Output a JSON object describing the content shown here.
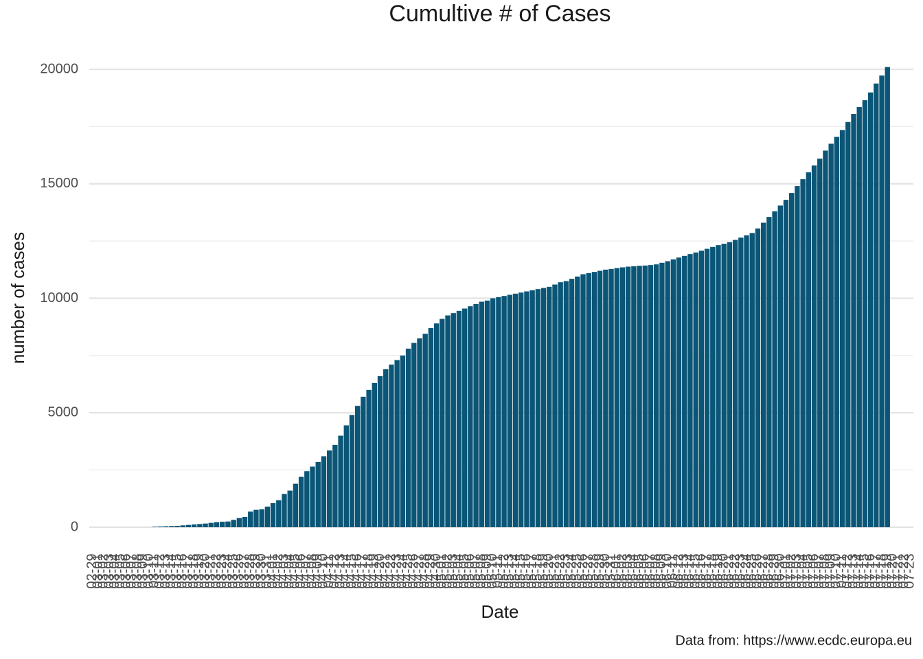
{
  "chart_data": {
    "type": "bar",
    "title": "Cumultive # of Cases",
    "x_label": "Date",
    "y_label": "number of cases",
    "caption": "Data from: https://www.ecdc.europa.eu",
    "color": "#0b5677",
    "grid": true,
    "ylim": [
      0,
      20000
    ],
    "yticks": [
      0,
      5000,
      10000,
      15000,
      20000
    ],
    "minor_yticks": [
      2500,
      7500,
      12500,
      17500
    ],
    "categories": [
      "02-29",
      "03-01",
      "03-02",
      "03-03",
      "03-04",
      "03-05",
      "03-06",
      "03-07",
      "03-08",
      "03-09",
      "03-10",
      "03-11",
      "03-12",
      "03-13",
      "03-14",
      "03-15",
      "03-16",
      "03-17",
      "03-18",
      "03-19",
      "03-20",
      "03-21",
      "03-22",
      "03-23",
      "03-24",
      "03-25",
      "03-26",
      "03-27",
      "03-28",
      "03-29",
      "03-30",
      "03-31",
      "04-01",
      "04-02",
      "04-03",
      "04-04",
      "04-05",
      "04-06",
      "04-07",
      "04-08",
      "04-09",
      "04-10",
      "04-11",
      "04-12",
      "04-13",
      "04-14",
      "04-15",
      "04-16",
      "04-17",
      "04-18",
      "04-19",
      "04-20",
      "04-21",
      "04-22",
      "04-23",
      "04-24",
      "04-25",
      "04-26",
      "04-27",
      "04-28",
      "04-29",
      "04-30",
      "05-01",
      "05-02",
      "05-03",
      "05-04",
      "05-05",
      "05-06",
      "05-07",
      "05-08",
      "05-09",
      "05-10",
      "05-11",
      "05-12",
      "05-13",
      "05-14",
      "05-15",
      "05-16",
      "05-17",
      "05-18",
      "05-19",
      "05-20",
      "05-21",
      "05-22",
      "05-23",
      "05-24",
      "05-25",
      "05-26",
      "05-27",
      "05-28",
      "05-29",
      "05-30",
      "05-31",
      "06-01",
      "06-02",
      "06-03",
      "06-04",
      "06-05",
      "06-06",
      "06-07",
      "06-08",
      "06-09",
      "06-10",
      "06-11",
      "06-12",
      "06-13",
      "06-14",
      "06-15",
      "06-16",
      "06-17",
      "06-18",
      "06-19",
      "06-20",
      "06-21",
      "06-22",
      "06-23",
      "06-24",
      "06-25",
      "06-26",
      "06-27",
      "06-28",
      "06-29",
      "06-30",
      "07-01",
      "07-02",
      "07-03",
      "07-04",
      "07-05",
      "07-06",
      "07-07",
      "07-08",
      "07-09",
      "07-10",
      "07-11",
      "07-12",
      "07-13",
      "07-14",
      "07-15",
      "07-16",
      "07-17",
      "07-18",
      "07-19",
      "07-20",
      "07-21",
      "07-22",
      "07-23"
    ],
    "values": [
      0,
      0,
      0,
      0,
      0,
      0,
      0,
      0,
      0,
      0,
      0,
      20,
      30,
      40,
      50,
      60,
      80,
      100,
      120,
      140,
      160,
      190,
      220,
      240,
      250,
      320,
      400,
      450,
      680,
      760,
      780,
      900,
      1050,
      1180,
      1450,
      1600,
      1900,
      2200,
      2450,
      2650,
      2850,
      3100,
      3350,
      3600,
      4000,
      4450,
      4900,
      5300,
      5700,
      6000,
      6300,
      6600,
      6900,
      7100,
      7300,
      7500,
      7800,
      8050,
      8250,
      8450,
      8700,
      8900,
      9100,
      9250,
      9350,
      9450,
      9550,
      9650,
      9750,
      9850,
      9900,
      10000,
      10050,
      10100,
      10150,
      10200,
      10250,
      10300,
      10350,
      10400,
      10450,
      10500,
      10600,
      10700,
      10750,
      10850,
      10950,
      11050,
      11100,
      11150,
      11200,
      11250,
      11280,
      11320,
      11350,
      11380,
      11400,
      11420,
      11430,
      11450,
      11480,
      11550,
      11620,
      11700,
      11780,
      11850,
      11930,
      12000,
      12080,
      12160,
      12240,
      12320,
      12380,
      12450,
      12550,
      12650,
      12750,
      12850,
      13050,
      13300,
      13550,
      13800,
      14050,
      14300,
      14600,
      14900,
      15200,
      15500,
      15800,
      16100,
      16450,
      16750,
      17050,
      17350,
      17700,
      18050,
      18350,
      18650,
      18990,
      19380,
      19730,
      20100,
      null,
      null,
      null,
      null
    ]
  }
}
